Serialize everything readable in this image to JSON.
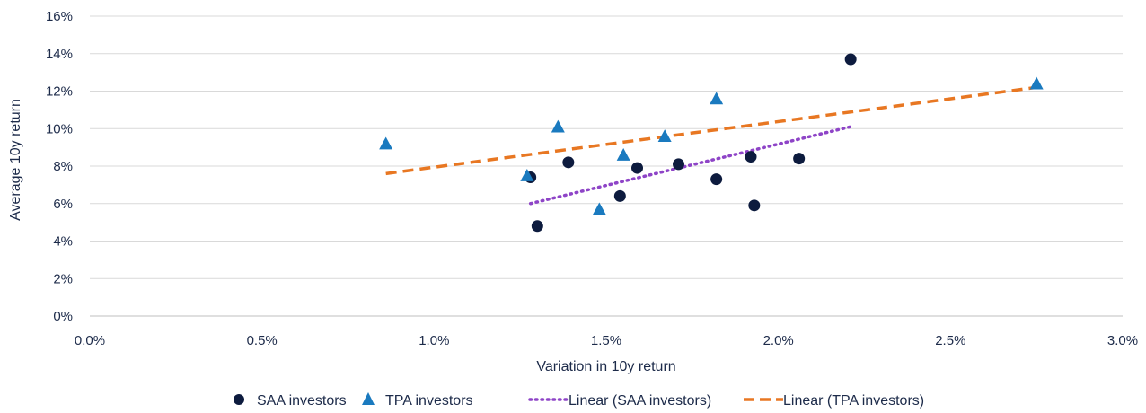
{
  "chart_data": {
    "type": "scatter",
    "xlabel": "Variation in 10y return",
    "ylabel": "Average 10y return",
    "xlim": [
      0,
      3.0
    ],
    "ylim": [
      0,
      16
    ],
    "x_ticks": [
      0,
      0.5,
      1.0,
      1.5,
      2.0,
      2.5,
      3.0
    ],
    "x_tick_labels": [
      "0.0%",
      "0.5%",
      "1.0%",
      "1.5%",
      "2.0%",
      "2.5%",
      "3.0%"
    ],
    "y_ticks": [
      0,
      2,
      4,
      6,
      8,
      10,
      12,
      14,
      16
    ],
    "y_tick_labels": [
      "0%",
      "2%",
      "4%",
      "6%",
      "8%",
      "10%",
      "12%",
      "14%",
      "16%"
    ],
    "grid": "horizontal",
    "legend_position": "bottom",
    "series": [
      {
        "name": "SAA investors",
        "marker": "circle",
        "color": "#0d1b3e",
        "points": [
          {
            "x": 1.28,
            "y": 7.4
          },
          {
            "x": 1.3,
            "y": 4.8
          },
          {
            "x": 1.39,
            "y": 8.2
          },
          {
            "x": 1.54,
            "y": 6.4
          },
          {
            "x": 1.59,
            "y": 7.9
          },
          {
            "x": 1.71,
            "y": 8.1
          },
          {
            "x": 1.82,
            "y": 7.3
          },
          {
            "x": 1.92,
            "y": 8.5
          },
          {
            "x": 1.93,
            "y": 5.9
          },
          {
            "x": 2.06,
            "y": 8.4
          },
          {
            "x": 2.21,
            "y": 13.7
          }
        ]
      },
      {
        "name": "TPA investors",
        "marker": "triangle",
        "color": "#1a7abf",
        "points": [
          {
            "x": 0.86,
            "y": 9.2
          },
          {
            "x": 1.27,
            "y": 7.5
          },
          {
            "x": 1.36,
            "y": 10.1
          },
          {
            "x": 1.48,
            "y": 5.7
          },
          {
            "x": 1.55,
            "y": 8.6
          },
          {
            "x": 1.67,
            "y": 9.6
          },
          {
            "x": 1.82,
            "y": 11.6
          },
          {
            "x": 2.75,
            "y": 12.4
          }
        ]
      }
    ],
    "trendlines": [
      {
        "name": "Linear (SAA investors)",
        "style": "dotted",
        "color": "#8e44c7",
        "x": [
          1.28,
          2.21
        ],
        "y": [
          6.0,
          10.1
        ]
      },
      {
        "name": "Linear (TPA investors)",
        "style": "dashed",
        "color": "#e87722",
        "x": [
          0.86,
          2.75
        ],
        "y": [
          7.6,
          12.2
        ]
      }
    ],
    "legend": [
      "SAA investors",
      "TPA investors",
      "Linear (SAA investors)",
      "Linear (TPA investors)"
    ]
  }
}
